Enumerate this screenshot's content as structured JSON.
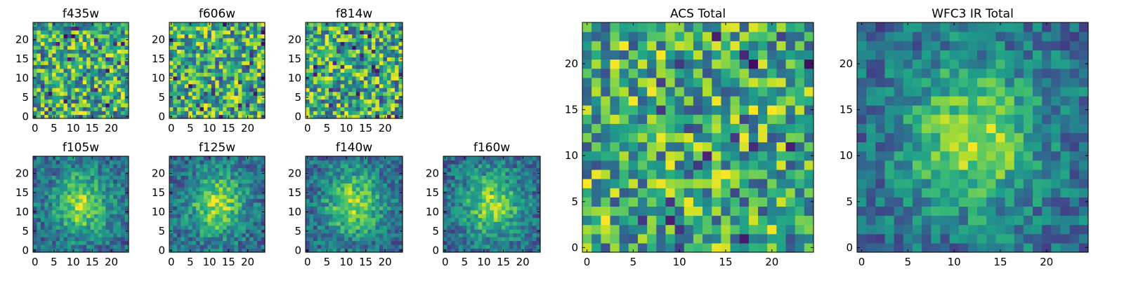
{
  "chart_data": [
    {
      "type": "heatmap",
      "title": "f435w",
      "shape": [
        25,
        25
      ],
      "xticks": [
        0,
        5,
        10,
        15,
        20
      ],
      "yticks": [
        0,
        5,
        10,
        15,
        20
      ],
      "colormap": "viridis",
      "texture": "noise"
    },
    {
      "type": "heatmap",
      "title": "f606w",
      "shape": [
        25,
        25
      ],
      "xticks": [
        0,
        5,
        10,
        15,
        20
      ],
      "yticks": [
        0,
        5,
        10,
        15,
        20
      ],
      "colormap": "viridis",
      "texture": "noise"
    },
    {
      "type": "heatmap",
      "title": "f814w",
      "shape": [
        25,
        25
      ],
      "xticks": [
        0,
        5,
        10,
        15,
        20
      ],
      "yticks": [
        0,
        5,
        10,
        15,
        20
      ],
      "colormap": "viridis",
      "texture": "noise"
    },
    {
      "type": "heatmap",
      "title": "f105w",
      "shape": [
        25,
        25
      ],
      "xticks": [
        0,
        5,
        10,
        15,
        20
      ],
      "yticks": [
        0,
        5,
        10,
        15,
        20
      ],
      "colormap": "viridis",
      "texture": "blob"
    },
    {
      "type": "heatmap",
      "title": "f125w",
      "shape": [
        25,
        25
      ],
      "xticks": [
        0,
        5,
        10,
        15,
        20
      ],
      "yticks": [
        0,
        5,
        10,
        15,
        20
      ],
      "colormap": "viridis",
      "texture": "blob"
    },
    {
      "type": "heatmap",
      "title": "f140w",
      "shape": [
        25,
        25
      ],
      "xticks": [
        0,
        5,
        10,
        15,
        20
      ],
      "yticks": [
        0,
        5,
        10,
        15,
        20
      ],
      "colormap": "viridis",
      "texture": "blob"
    },
    {
      "type": "heatmap",
      "title": "f160w",
      "shape": [
        25,
        25
      ],
      "xticks": [
        0,
        5,
        10,
        15,
        20
      ],
      "yticks": [
        0,
        5,
        10,
        15,
        20
      ],
      "colormap": "viridis",
      "texture": "blob"
    },
    {
      "type": "heatmap",
      "title": "ACS Total",
      "shape": [
        25,
        25
      ],
      "xticks": [
        0,
        5,
        10,
        15,
        20
      ],
      "yticks": [
        0,
        5,
        10,
        15,
        20
      ],
      "colormap": "viridis",
      "texture": "noise"
    },
    {
      "type": "heatmap",
      "title": "WFC3 IR Total",
      "shape": [
        25,
        25
      ],
      "xticks": [
        0,
        5,
        10,
        15,
        20
      ],
      "yticks": [
        0,
        5,
        10,
        15,
        20
      ],
      "colormap": "viridis",
      "texture": "blob"
    }
  ]
}
